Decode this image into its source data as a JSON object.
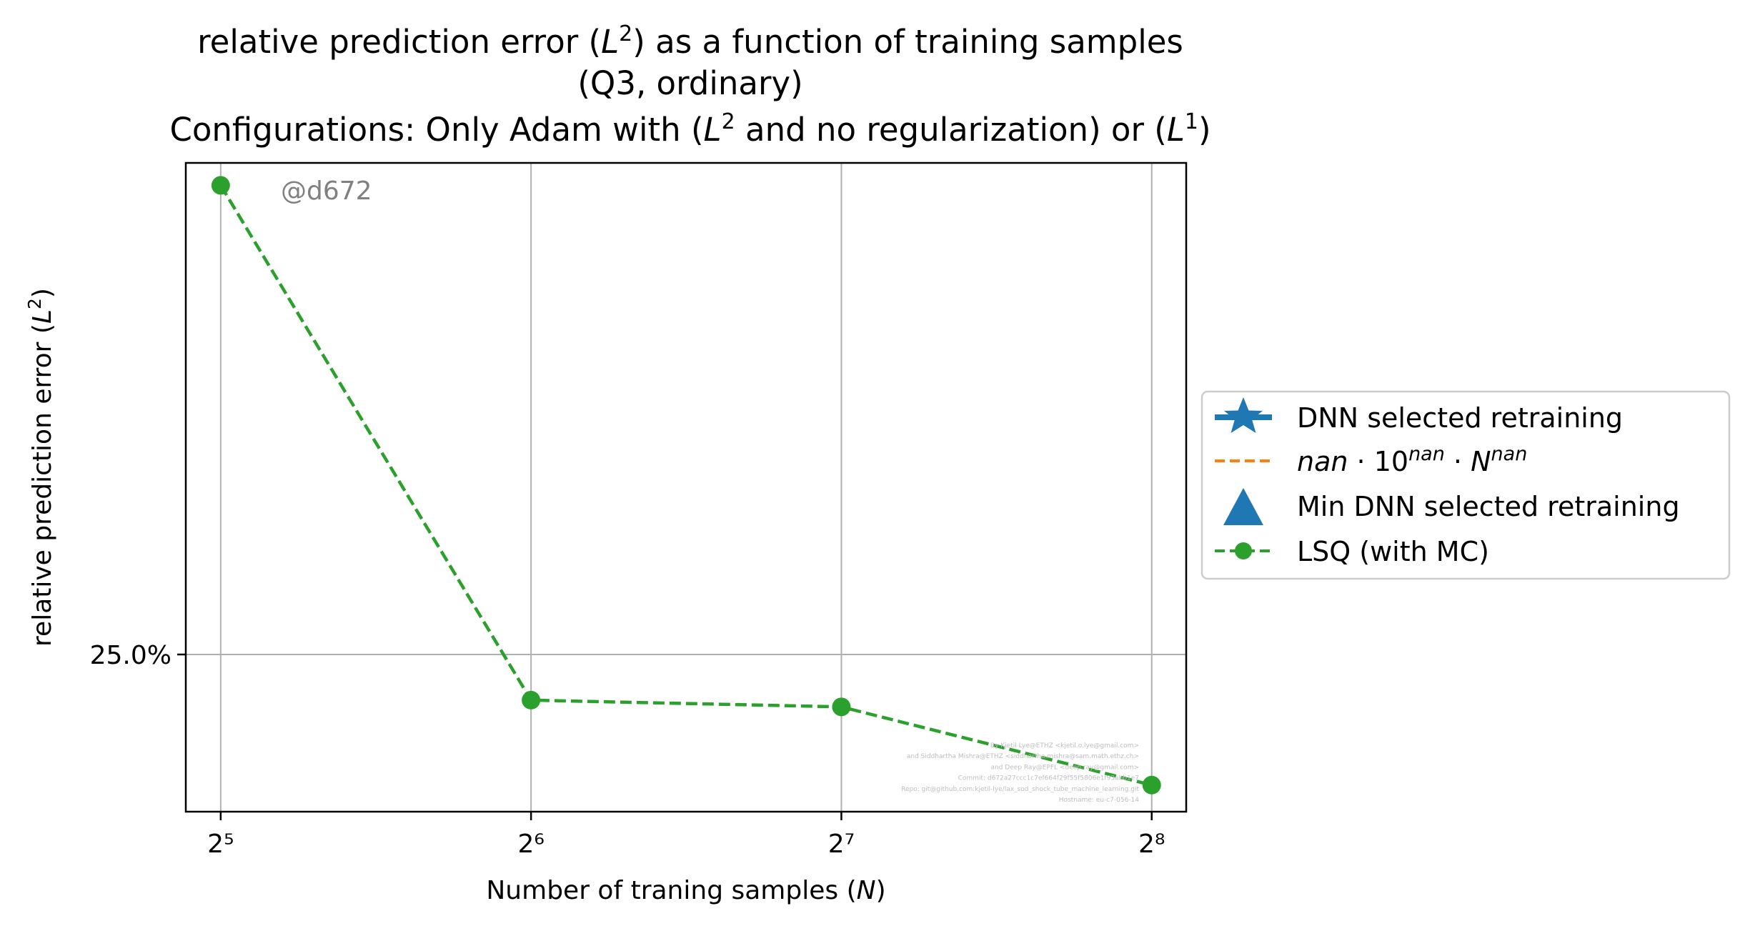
{
  "chart_data": {
    "type": "line",
    "title_lines": [
      "relative prediction error (L²) as a function of training samples",
      "(Q3, ordinary)",
      "Configurations: Only Adam with (L² and no regularization) or (L¹)"
    ],
    "xlabel": "Number of traning samples (N)",
    "ylabel": "relative prediction error (L²)",
    "x_scale": "log2",
    "y_scale": "log",
    "x_ticks": [
      32,
      64,
      128,
      256
    ],
    "x_tick_labels": [
      "2⁵",
      "2⁶",
      "2⁷",
      "2⁸"
    ],
    "y_ticks": [
      0.25
    ],
    "y_tick_labels": [
      "25.0%"
    ],
    "xlim": [
      29.6,
      276.5
    ],
    "ylim": [
      0.205,
      0.465
    ],
    "grid": true,
    "legend_position": "center-right-outside",
    "watermark": "@d672",
    "series": [
      {
        "name": "DNN selected retraining",
        "marker": "star",
        "color": "#1f77b4",
        "x": [],
        "y": []
      },
      {
        "name": "nan · 10^nan · N^nan",
        "style": "dashed",
        "color": "#ff7f0e",
        "x": [],
        "y": []
      },
      {
        "name": "Min DNN selected retraining",
        "marker": "triangle",
        "color": "#1f77b4",
        "x": [],
        "y": []
      },
      {
        "name": "LSQ (with MC)",
        "marker": "circle",
        "style": "dashed",
        "color": "#2ca02c",
        "x": [
          32,
          64,
          128,
          256
        ],
        "y": [
          0.452,
          0.236,
          0.234,
          0.212
        ]
      }
    ],
    "credits": [
      "By Kjetil Lye@ETHZ <kjetil.o.lye@gmail.com>",
      "and Siddhartha Mishra@ETHZ <siddhartha.mishra@sam.math.ethz.ch>",
      "and Deep Ray@EPFL <deep.ray@gmail.com>",
      "Commit: d672a27ccc1c7ef664f29f55f5806e1f93abb1e7",
      "Repo: git@github.com:kjetil-lye/lax_sod_shock_tube_machine_learning.git",
      "Hostname: eu-c7-056-14"
    ]
  },
  "legend": {
    "items": [
      {
        "label": "DNN selected retraining",
        "math_prefix": "",
        "icon": "star-line-icon"
      },
      {
        "label": "nan · 10^nan · N^nan",
        "icon": "orange-dash-icon"
      },
      {
        "label": "Min DNN selected retraining",
        "icon": "triangle-icon"
      },
      {
        "label": "LSQ (with MC)",
        "icon": "green-dashed-circle-icon"
      }
    ]
  },
  "colors": {
    "lsq": "#2ca02c",
    "dnn": "#1f77b4",
    "fit": "#ff7f0e",
    "grid": "#b0b0b0",
    "watermark": "#808080"
  }
}
